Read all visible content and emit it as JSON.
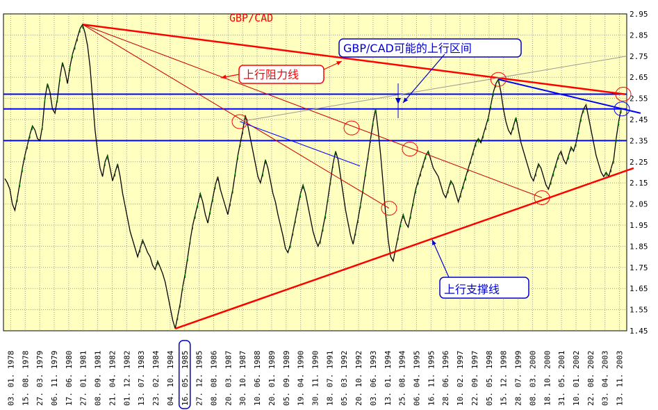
{
  "chart_data": {
    "type": "line",
    "title": "GBP/CAD",
    "ylim": [
      1.45,
      2.95
    ],
    "y_ticks": [
      2.95,
      2.85,
      2.75,
      2.65,
      2.55,
      2.45,
      2.35,
      2.25,
      2.15,
      2.05,
      1.95,
      1.85,
      1.75,
      1.65,
      1.55,
      1.45
    ],
    "y_tick_labels": [
      "2.95",
      "2.85",
      "2.75",
      "2.65",
      "2.55",
      "2.45",
      "2.35",
      "2.25",
      "2.15",
      "2.05",
      "1.95",
      "1.85",
      "1.75",
      "1.65",
      "1.55",
      "1.45"
    ],
    "x_tick_labels": [
      "03. 01. 1978",
      "15. 08. 1978",
      "27. 03. 1979",
      "06. 11. 1979",
      "17. 06. 1980",
      "27. 01. 1981",
      "08. 09. 1981",
      "21. 04. 1982",
      "01. 12. 1982",
      "13. 07. 1983",
      "23. 02. 1984",
      "04. 10. 1984",
      "16. 05. 1985",
      "27. 12. 1985",
      "08. 08. 1986",
      "20. 03. 1987",
      "30. 10. 1987",
      "10. 06. 1988",
      "20. 01. 1989",
      "05. 09. 1989",
      "19. 04. 1990",
      "30. 11. 1990",
      "18. 07. 1991",
      "05. 03. 1992",
      "20. 10. 1992",
      "03. 06. 1993",
      "13. 01. 1994",
      "25. 08. 1994",
      "06. 04. 1995",
      "16. 11. 1995",
      "28. 06. 1996",
      "10. 02. 1997",
      "22. 09. 1997",
      "05. 05. 1998",
      "15. 12. 1998",
      "28. 07. 1999",
      "08. 03. 2000",
      "18. 10. 2000",
      "31. 05. 2001",
      "10. 01. 2002",
      "22. 08. 2002",
      "03. 04. 2003",
      "13. 11. 2003"
    ],
    "highlighted_x_label": "16. 05. 1985",
    "series": [
      {
        "values": [
          2.17,
          2.15,
          2.12,
          2.05,
          2.02,
          2.08,
          2.15,
          2.22,
          2.28,
          2.33,
          2.38,
          2.42,
          2.4,
          2.36,
          2.35,
          2.42,
          2.55,
          2.62,
          2.58,
          2.5,
          2.48,
          2.55,
          2.65,
          2.72,
          2.68,
          2.62,
          2.7,
          2.76,
          2.8,
          2.84,
          2.88,
          2.9,
          2.86,
          2.8,
          2.7,
          2.55,
          2.4,
          2.3,
          2.22,
          2.18,
          2.25,
          2.28,
          2.22,
          2.16,
          2.2,
          2.24,
          2.18,
          2.1,
          2.04,
          1.98,
          1.92,
          1.88,
          1.84,
          1.8,
          1.84,
          1.88,
          1.85,
          1.82,
          1.8,
          1.76,
          1.74,
          1.78,
          1.75,
          1.72,
          1.68,
          1.62,
          1.56,
          1.5,
          1.46,
          1.52,
          1.58,
          1.66,
          1.72,
          1.8,
          1.88,
          1.95,
          2.0,
          2.05,
          2.1,
          2.06,
          2.0,
          1.96,
          2.02,
          2.08,
          2.14,
          2.18,
          2.12,
          2.08,
          2.04,
          2.0,
          2.06,
          2.12,
          2.2,
          2.28,
          2.34,
          2.4,
          2.47,
          2.42,
          2.36,
          2.3,
          2.24,
          2.18,
          2.15,
          2.2,
          2.26,
          2.22,
          2.16,
          2.1,
          2.06,
          2.0,
          1.95,
          1.9,
          1.84,
          1.82,
          1.86,
          1.92,
          1.98,
          2.04,
          2.1,
          2.14,
          2.1,
          2.04,
          1.98,
          1.92,
          1.88,
          1.85,
          1.88,
          1.94,
          2.0,
          2.08,
          2.16,
          2.24,
          2.3,
          2.26,
          2.18,
          2.1,
          2.02,
          1.96,
          1.9,
          1.86,
          1.92,
          1.98,
          2.05,
          2.12,
          2.2,
          2.28,
          2.36,
          2.44,
          2.5,
          2.4,
          2.28,
          2.14,
          2.0,
          1.88,
          1.8,
          1.78,
          1.84,
          1.9,
          1.96,
          2.0,
          1.96,
          1.94,
          2.0,
          2.06,
          2.12,
          2.16,
          2.2,
          2.24,
          2.28,
          2.3,
          2.26,
          2.22,
          2.2,
          2.18,
          2.14,
          2.1,
          2.08,
          2.12,
          2.16,
          2.14,
          2.1,
          2.06,
          2.1,
          2.14,
          2.18,
          2.22,
          2.26,
          2.3,
          2.34,
          2.36,
          2.34,
          2.38,
          2.42,
          2.46,
          2.52,
          2.58,
          2.62,
          2.64,
          2.58,
          2.5,
          2.44,
          2.4,
          2.38,
          2.42,
          2.46,
          2.4,
          2.34,
          2.3,
          2.26,
          2.22,
          2.18,
          2.16,
          2.2,
          2.24,
          2.22,
          2.18,
          2.14,
          2.12,
          2.16,
          2.2,
          2.24,
          2.28,
          2.3,
          2.26,
          2.24,
          2.28,
          2.32,
          2.3,
          2.34,
          2.4,
          2.46,
          2.5,
          2.52,
          2.46,
          2.4,
          2.34,
          2.28,
          2.24,
          2.2,
          2.18,
          2.2,
          2.18,
          2.22,
          2.26,
          2.36,
          2.44,
          2.5
        ]
      }
    ],
    "horizontal_levels": [
      2.57,
      2.5,
      2.35
    ],
    "annotations": {
      "upper_range": "GBP/CAD可能的上行区间",
      "resistance": "上行阻力线",
      "support": "上行支撑线"
    },
    "colors": {
      "price_line": "#000000",
      "up_tick": "#008000",
      "resistance_line": "#ff0000",
      "support_line": "#ff0000",
      "horizontal_level": "#0000ff",
      "trend_thin_red": "#cc0000",
      "trend_thin_blue": "#0000ff",
      "marker_circle": "#ff0000",
      "plot_background": "#ffffc0",
      "grid": "#999999"
    },
    "grid": true
  }
}
